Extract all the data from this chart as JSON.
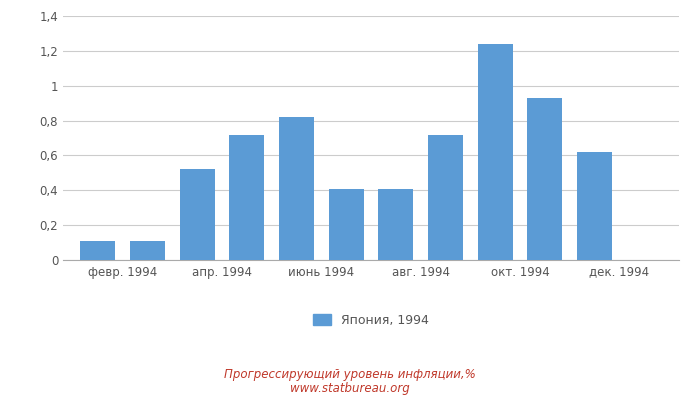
{
  "bar_positions": [
    1,
    2,
    3,
    4,
    5,
    6,
    7,
    8,
    9,
    10,
    11,
    12
  ],
  "values": [
    0.11,
    0.11,
    0.52,
    0.72,
    0.82,
    0.41,
    0.41,
    0.72,
    1.24,
    0.93,
    0.62,
    0.0
  ],
  "tick_labels": [
    "февр. 1994",
    "апр. 1994",
    "июнь 1994",
    "авг. 1994",
    "окт. 1994",
    "дек. 1994"
  ],
  "tick_positions": [
    1.5,
    3.5,
    5.5,
    7.5,
    9.5,
    11.5
  ],
  "bar_color": "#5b9bd5",
  "bar_width": 0.7,
  "ylim": [
    0,
    1.4
  ],
  "yticks": [
    0,
    0.2,
    0.4,
    0.6,
    0.8,
    1.0,
    1.2,
    1.4
  ],
  "ytick_labels": [
    "0",
    "0,2",
    "0,4",
    "0,6",
    "0,8",
    "1",
    "1,2",
    "1,4"
  ],
  "xlim": [
    0.3,
    12.7
  ],
  "legend_label": "Япония, 1994",
  "footer_line1": "Прогрессирующий уровень инфляции,%",
  "footer_line2": "www.statbureau.org",
  "footer_color": "#c0392b",
  "background_color": "#ffffff",
  "grid_color": "#cccccc",
  "tick_color": "#555555",
  "spine_color": "#aaaaaa"
}
